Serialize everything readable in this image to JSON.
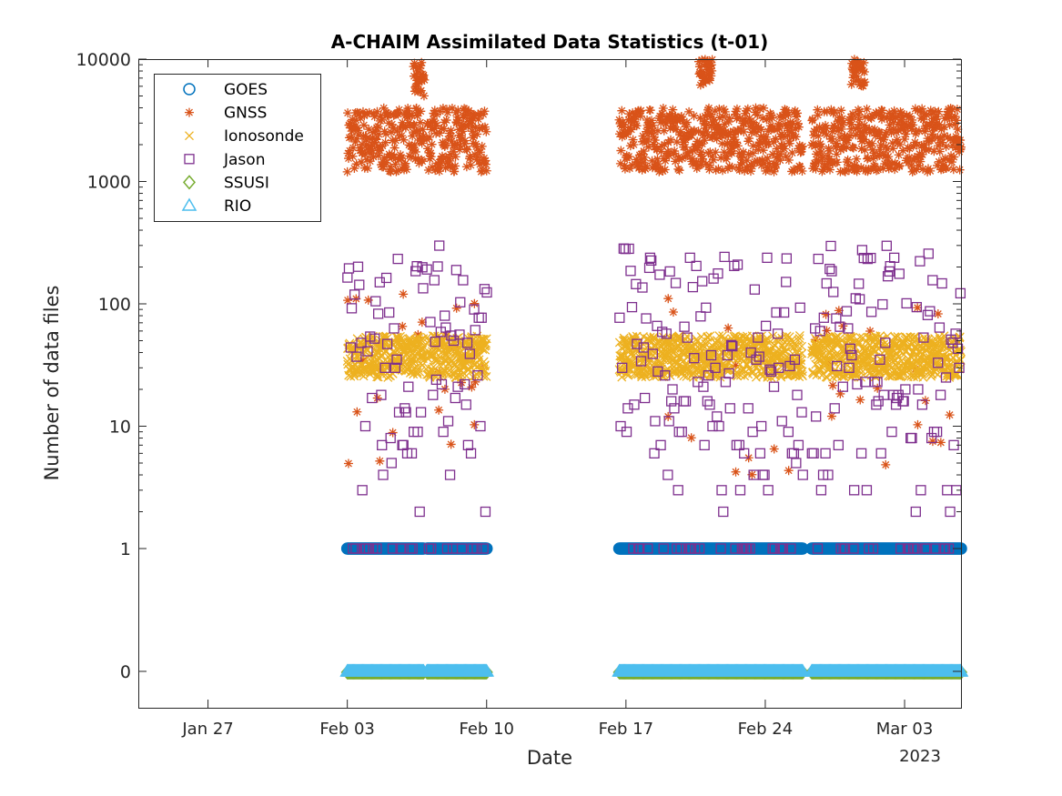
{
  "chart_data": {
    "type": "scatter",
    "title": "A-CHAIM Assimilated Data Statistics (t-01)",
    "xlabel": "Date",
    "ylabel": "Number of data files",
    "x_tick_labels": [
      "Jan 27",
      "Feb 03",
      "Feb 10",
      "Feb 17",
      "Feb 24",
      "Mar 03"
    ],
    "x_ticks": [
      "2023-01-27",
      "2023-02-03",
      "2023-02-10",
      "2023-02-17",
      "2023-02-24",
      "2023-03-03"
    ],
    "x_secondary_label": "2023",
    "xlim": [
      "2023-01-23T12:00",
      "2023-03-05T20:00"
    ],
    "y_scale": "log (0 shown at bottom)",
    "y_tick_labels": [
      "0",
      "1",
      "10",
      "100",
      "1000",
      "10000"
    ],
    "y_ticks": [
      0,
      1,
      10,
      100,
      1000,
      10000
    ],
    "legend_position": "top-left",
    "grid": false,
    "coverage_periods": [
      {
        "start": "2023-02-03T00:00",
        "end": "2023-02-06T20:00"
      },
      {
        "start": "2023-02-07T00:00",
        "end": "2023-02-10T00:00"
      },
      {
        "start": "2023-02-16T16:00",
        "end": "2023-02-25T21:00"
      },
      {
        "start": "2023-02-26T08:00",
        "end": "2023-03-05T20:00"
      }
    ],
    "series": [
      {
        "name": "GOES",
        "marker": "circle",
        "color": "#0072BD",
        "typical_value": 1
      },
      {
        "name": "GNSS",
        "marker": "asterisk",
        "color": "#D95319",
        "typical_range": [
          1200,
          4000
        ],
        "peak_periods": [
          {
            "start": "2023-02-06T08:00",
            "end": "2023-02-06T21:00",
            "range": [
              5000,
              10000
            ]
          },
          {
            "start": "2023-02-20T16:00",
            "end": "2023-02-21T08:00",
            "range": [
              6000,
              10000
            ]
          },
          {
            "start": "2023-02-28T08:00",
            "end": "2023-02-29T00:00",
            "range": [
              6000,
              10000
            ]
          }
        ]
      },
      {
        "name": "Ionosonde",
        "marker": "x",
        "color": "#EDB120",
        "typical_range": [
          25,
          55
        ]
      },
      {
        "name": "Jason",
        "marker": "square",
        "color": "#7E2F8E",
        "range": [
          1,
          300
        ]
      },
      {
        "name": "SSUSI",
        "marker": "diamond",
        "color": "#77AC30",
        "typical_value": 0
      },
      {
        "name": "RIO",
        "marker": "triangle",
        "color": "#4DBEEE",
        "typical_value": 0
      }
    ]
  }
}
